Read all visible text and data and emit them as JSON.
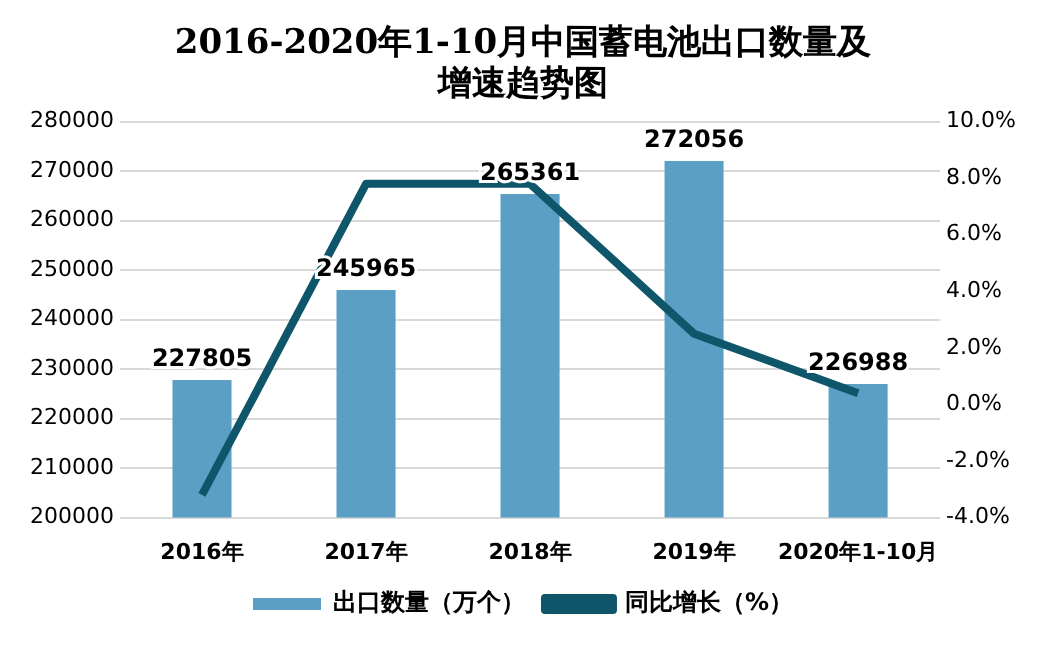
{
  "chart_data": {
    "type": "bar",
    "title": [
      "2016-2020年1-10月中国蓄电池出口数量及",
      "增速趋势图"
    ],
    "categories": [
      "2016年",
      "2017年",
      "2018年",
      "2019年",
      "2020年1-10月"
    ],
    "series": [
      {
        "name": "出口数量（万个）",
        "color": "#5b9fc4",
        "values": [
          227805,
          245965,
          265361,
          272056,
          226988
        ],
        "value_labels": [
          "227805",
          "245965",
          "265361",
          "272056",
          "226988"
        ]
      },
      {
        "name": "同比增长（%）",
        "type": "line",
        "axis": "y2",
        "color": "#10566b",
        "values": [
          -3.2,
          7.8,
          7.8,
          2.5,
          0.4
        ]
      }
    ],
    "ylim": [
      200000,
      280000
    ],
    "yticks": [
      200000,
      210000,
      220000,
      230000,
      240000,
      250000,
      260000,
      270000,
      280000
    ],
    "y2lim": [
      -4,
      10
    ],
    "y2ticks": [
      {
        "value": -4,
        "label": "-4.0%"
      },
      {
        "value": -2,
        "label": "-2.0%"
      },
      {
        "value": 0,
        "label": "0.0%"
      },
      {
        "value": 2,
        "label": "2.0%"
      },
      {
        "value": 4,
        "label": "4.0%"
      },
      {
        "value": 6,
        "label": "6.0%"
      },
      {
        "value": 8,
        "label": "8.0%"
      },
      {
        "value": 10,
        "label": "10.0%"
      }
    ],
    "grid": "y",
    "legend": "bottom",
    "marker": "none"
  }
}
